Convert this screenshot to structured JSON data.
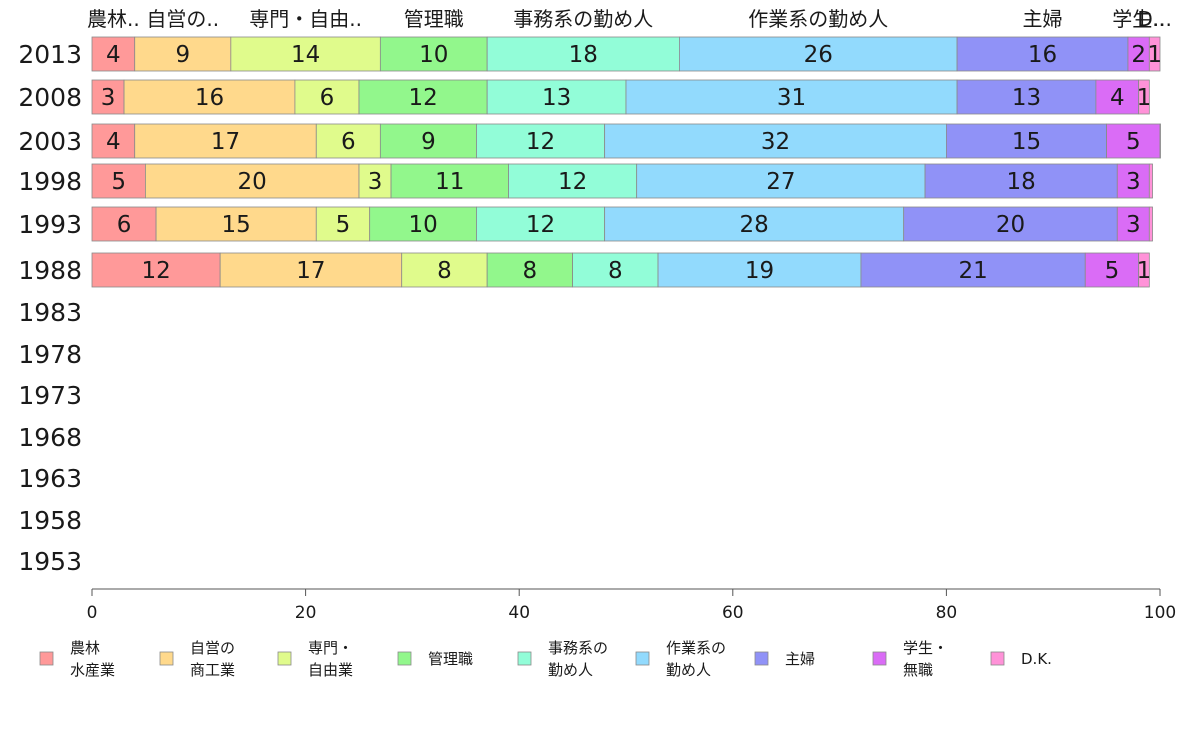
{
  "chart_data": {
    "type": "bar",
    "orientation": "horizontal",
    "stacked": true,
    "title": "",
    "xlabel": "",
    "ylabel": "",
    "xlim": [
      0,
      100
    ],
    "x_ticks": [
      0,
      20,
      40,
      60,
      80,
      100
    ],
    "categories": [
      "2013",
      "2008",
      "2003",
      "1998",
      "1993",
      "1988",
      "1983",
      "1978",
      "1973",
      "1968",
      "1963",
      "1958",
      "1953"
    ],
    "header_labels": [
      "農林..",
      "自営の..",
      "専門・自由..",
      "管理職",
      "事務系の勤め人",
      "作業系の勤め人",
      "主婦",
      "学生..",
      "D..."
    ],
    "legend_position": "bottom",
    "grid": false,
    "series": [
      {
        "name": "農林水産業",
        "legend_lines": [
          "農林",
          "水産業"
        ],
        "color": "#ff9999",
        "values": [
          4,
          3,
          4,
          5,
          6,
          12,
          null,
          null,
          null,
          null,
          null,
          null,
          null
        ]
      },
      {
        "name": "自営の商工業",
        "legend_lines": [
          "自営の",
          "商工業"
        ],
        "color": "#ffd98c",
        "values": [
          9,
          16,
          17,
          20,
          15,
          17,
          null,
          null,
          null,
          null,
          null,
          null,
          null
        ]
      },
      {
        "name": "専門・自由業",
        "legend_lines": [
          "専門・",
          "自由業"
        ],
        "color": "#e0fb8c",
        "values": [
          14,
          6,
          6,
          3,
          5,
          8,
          null,
          null,
          null,
          null,
          null,
          null,
          null
        ]
      },
      {
        "name": "管理職",
        "legend_lines": [
          "管理職"
        ],
        "color": "#92f78c",
        "values": [
          10,
          12,
          9,
          11,
          10,
          8,
          null,
          null,
          null,
          null,
          null,
          null,
          null
        ]
      },
      {
        "name": "事務系の勤め人",
        "legend_lines": [
          "事務系の",
          "勤め人"
        ],
        "color": "#92fdd8",
        "values": [
          18,
          13,
          12,
          12,
          12,
          8,
          null,
          null,
          null,
          null,
          null,
          null,
          null
        ]
      },
      {
        "name": "作業系の勤め人",
        "legend_lines": [
          "作業系の",
          "勤め人"
        ],
        "color": "#92dafd",
        "values": [
          26,
          31,
          32,
          27,
          28,
          19,
          null,
          null,
          null,
          null,
          null,
          null,
          null
        ]
      },
      {
        "name": "主婦",
        "legend_lines": [
          "主婦"
        ],
        "color": "#9092f7",
        "values": [
          16,
          13,
          15,
          18,
          20,
          21,
          null,
          null,
          null,
          null,
          null,
          null,
          null
        ]
      },
      {
        "name": "学生・無職",
        "legend_lines": [
          "学生・",
          "無職"
        ],
        "color": "#da6cf6",
        "values": [
          2,
          4,
          5,
          3,
          3,
          5,
          null,
          null,
          null,
          null,
          null,
          null,
          null
        ]
      },
      {
        "name": "D.K.",
        "legend_lines": [
          "D.K."
        ],
        "color": "#ff92d8",
        "values": [
          1,
          1,
          0.3,
          0.3,
          0.3,
          1,
          null,
          null,
          null,
          null,
          null,
          null,
          null
        ]
      }
    ]
  }
}
